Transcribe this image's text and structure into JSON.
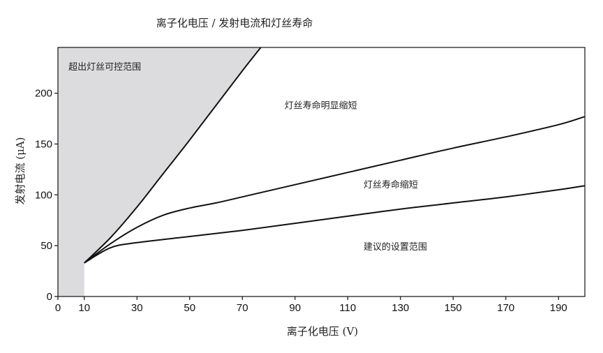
{
  "chart_data": {
    "type": "line",
    "title": "离子化电压 / 发射电流和灯丝寿命",
    "xlabel": "离子化电压 (V)",
    "ylabel": "发射电流 (μA)",
    "xlim": [
      0,
      200
    ],
    "ylim": [
      0,
      245
    ],
    "x_ticks": [
      0,
      10,
      30,
      50,
      70,
      90,
      110,
      130,
      150,
      170,
      190
    ],
    "y_ticks": [
      0,
      50,
      100,
      150,
      200
    ],
    "grid": false,
    "series": [
      {
        "x": [
          10,
          20,
          30,
          40,
          50,
          60,
          70,
          77
        ],
        "y": [
          33,
          58,
          88,
          121,
          154,
          188,
          222,
          245
        ]
      },
      {
        "x": [
          10,
          20,
          30,
          40,
          50,
          60,
          70,
          90,
          110,
          130,
          150,
          170,
          190,
          200
        ],
        "y": [
          33,
          52,
          68,
          80,
          87,
          92,
          98,
          110,
          122,
          134,
          146,
          157,
          169,
          177
        ]
      },
      {
        "x": [
          10,
          20,
          30,
          50,
          70,
          90,
          110,
          130,
          150,
          170,
          190,
          200
        ],
        "y": [
          33,
          48,
          53,
          59,
          65,
          72,
          79,
          86,
          92,
          98,
          105,
          109
        ]
      }
    ],
    "shaded_region": {
      "color": "#dcdcde"
    },
    "annotations": [
      {
        "text": "超出灯丝可控范围",
        "x": 4,
        "y": 223
      },
      {
        "text": "灯丝寿命明显缩短",
        "x": 86,
        "y": 185
      },
      {
        "text": "灯丝寿命缩短",
        "x": 116,
        "y": 107
      },
      {
        "text": "建议的设置范围",
        "x": 116,
        "y": 46
      }
    ],
    "colors": {
      "line": "#111111",
      "frame": "#111111",
      "shade": "#dcdcde"
    }
  }
}
